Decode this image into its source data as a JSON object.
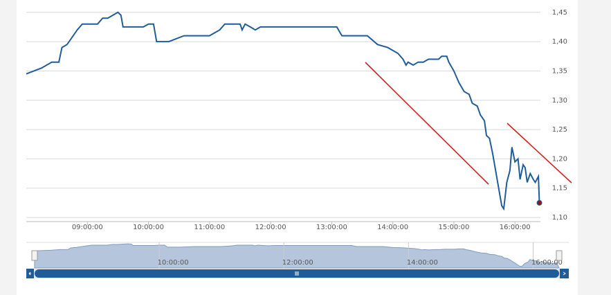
{
  "chart_data": {
    "type": "line",
    "color": "#1f5c99",
    "x": [
      "08:00:00",
      "08:15:00",
      "08:25:00",
      "08:32:00",
      "08:35:00",
      "08:40:00",
      "08:50:00",
      "08:55:00",
      "09:10:00",
      "09:15:00",
      "09:20:00",
      "09:25:00",
      "09:30:00",
      "09:33:00",
      "09:35:00",
      "09:55:00",
      "10:00:00",
      "10:05:00",
      "10:08:00",
      "10:20:00",
      "10:35:00",
      "11:00:00",
      "11:05:00",
      "11:10:00",
      "11:15:00",
      "11:30:00",
      "11:32:00",
      "11:35:00",
      "11:40:00",
      "11:45:00",
      "11:50:00",
      "12:30:00",
      "13:05:00",
      "13:10:00",
      "13:35:00",
      "13:45:00",
      "13:55:00",
      "14:05:00",
      "14:10:00",
      "14:13:00",
      "14:15:00",
      "14:20:00",
      "14:25:00",
      "14:30:00",
      "14:35:00",
      "14:45:00",
      "14:48:00",
      "14:53:00",
      "14:55:00",
      "15:00:00",
      "15:05:00",
      "15:10:00",
      "15:15:00",
      "15:18:00",
      "15:23:00",
      "15:26:00",
      "15:30:00",
      "15:32:00",
      "15:35:00",
      "15:38:00",
      "15:40:00",
      "15:43:00",
      "15:47:00",
      "15:49:00",
      "15:52:00",
      "15:55:00",
      "15:57:00",
      "16:00:00",
      "16:03:00",
      "16:05:00",
      "16:08:00",
      "16:10:00",
      "16:12:00",
      "16:15:00",
      "16:18:00",
      "16:20:00",
      "16:23:00",
      "16:24:00"
    ],
    "values": [
      1.345,
      1.355,
      1.365,
      1.365,
      1.39,
      1.395,
      1.42,
      1.43,
      1.43,
      1.44,
      1.44,
      1.445,
      1.45,
      1.445,
      1.425,
      1.425,
      1.43,
      1.43,
      1.4,
      1.4,
      1.41,
      1.41,
      1.415,
      1.42,
      1.43,
      1.43,
      1.42,
      1.43,
      1.425,
      1.42,
      1.425,
      1.425,
      1.425,
      1.41,
      1.41,
      1.395,
      1.39,
      1.38,
      1.37,
      1.36,
      1.365,
      1.36,
      1.365,
      1.365,
      1.37,
      1.37,
      1.375,
      1.375,
      1.365,
      1.35,
      1.33,
      1.315,
      1.31,
      1.295,
      1.29,
      1.275,
      1.265,
      1.24,
      1.235,
      1.21,
      1.19,
      1.16,
      1.12,
      1.115,
      1.16,
      1.18,
      1.22,
      1.195,
      1.2,
      1.165,
      1.19,
      1.185,
      1.16,
      1.175,
      1.165,
      1.16,
      1.17,
      1.125
    ],
    "xlim": [
      "08:00:00",
      "16:25:00"
    ],
    "xticks": [
      "09:00:00",
      "10:00:00",
      "11:00:00",
      "12:00:00",
      "13:00:00",
      "14:00:00",
      "15:00:00",
      "16:00:00"
    ],
    "ylim": [
      1.093,
      1.471
    ],
    "yticks": [
      {
        "value": 1.1,
        "label": "1,10"
      },
      {
        "value": 1.15,
        "label": "1,15"
      },
      {
        "value": 1.2,
        "label": "1,20"
      },
      {
        "value": 1.25,
        "label": "1,25"
      },
      {
        "value": 1.3,
        "label": "1,30"
      },
      {
        "value": 1.35,
        "label": "1,35"
      },
      {
        "value": 1.4,
        "label": "1,40"
      },
      {
        "value": 1.45,
        "label": "1,45"
      }
    ],
    "grid": true,
    "navigator": {
      "xticks": [
        "10:00:00",
        "12:00:00",
        "14:00:00",
        "16:00:00"
      ]
    }
  }
}
